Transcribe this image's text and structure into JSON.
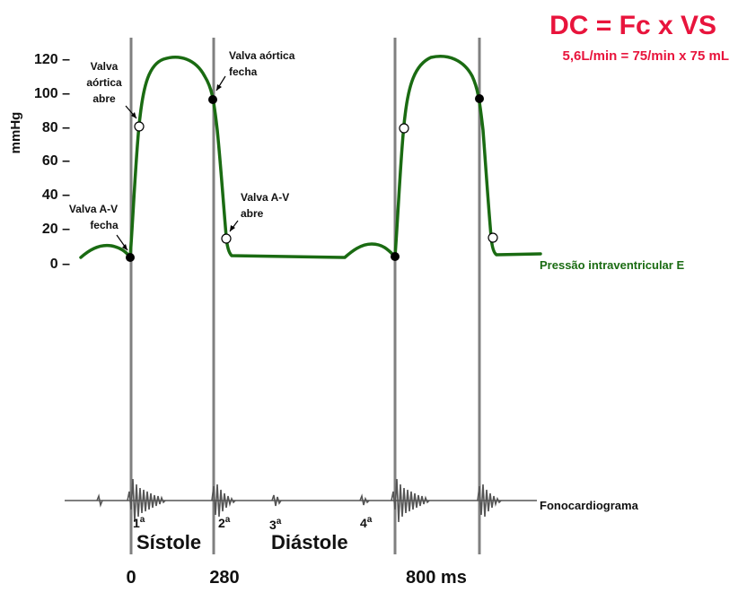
{
  "header": {
    "title": "DC = Fc x VS",
    "subtitle": "5,6L/min = 75/min x 75 mL",
    "accent_color": "#e8143c"
  },
  "axis": {
    "ylabel": "mmHg",
    "ticks": [
      "120 –",
      "100 –",
      "80 –",
      "60 –",
      "40 –",
      "20 –",
      "0 –"
    ]
  },
  "annotations": {
    "aortic_open": [
      "Valva",
      "aórtica",
      "abre"
    ],
    "aortic_close": [
      "Valva aórtica",
      "fecha"
    ],
    "av_close": [
      "Valva A-V",
      "fecha"
    ],
    "av_open": [
      "Valva A-V",
      "abre"
    ]
  },
  "curve": {
    "label": "Pressão intraventricular E",
    "color": "#1a6b12"
  },
  "phono": {
    "label": "Fonocardiograma",
    "sounds": [
      "1",
      "2",
      "3",
      "4"
    ],
    "sup": "a"
  },
  "phases": {
    "systole": "Sístole",
    "diastole": "Diástole"
  },
  "time_axis": {
    "t0": "0",
    "t1": "280",
    "t2": "800  ms"
  }
}
